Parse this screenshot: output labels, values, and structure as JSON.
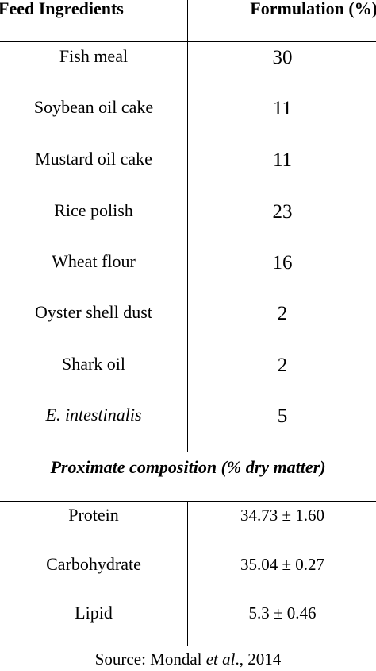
{
  "table": {
    "headers": {
      "ingredient": "Feed Ingredients",
      "formulation": "Formulation (%)"
    },
    "ingredients": [
      {
        "name": "Fish meal",
        "value": "30"
      },
      {
        "name": "Soybean oil cake",
        "value": "11"
      },
      {
        "name": "Mustard oil cake",
        "value": "11"
      },
      {
        "name": "Rice polish",
        "value": "23"
      },
      {
        "name": "Wheat flour",
        "value": "16"
      },
      {
        "name": "Oyster shell dust",
        "value": "2"
      },
      {
        "name": "Shark oil",
        "value": "2"
      },
      {
        "name": "E. intestinalis",
        "value": "5"
      }
    ],
    "proximate_heading": "Proximate composition (% dry matter)",
    "proximate": [
      {
        "name": "Protein",
        "value": "34.73 ± 1.60"
      },
      {
        "name": "Carbohydrate",
        "value": "35.04 ± 0.27"
      },
      {
        "name": "Lipid",
        "value": "5.3 ± 0.46"
      }
    ],
    "source_prefix": "Source: Mondal ",
    "source_etal": "et al",
    "source_suffix": "., 2014"
  }
}
